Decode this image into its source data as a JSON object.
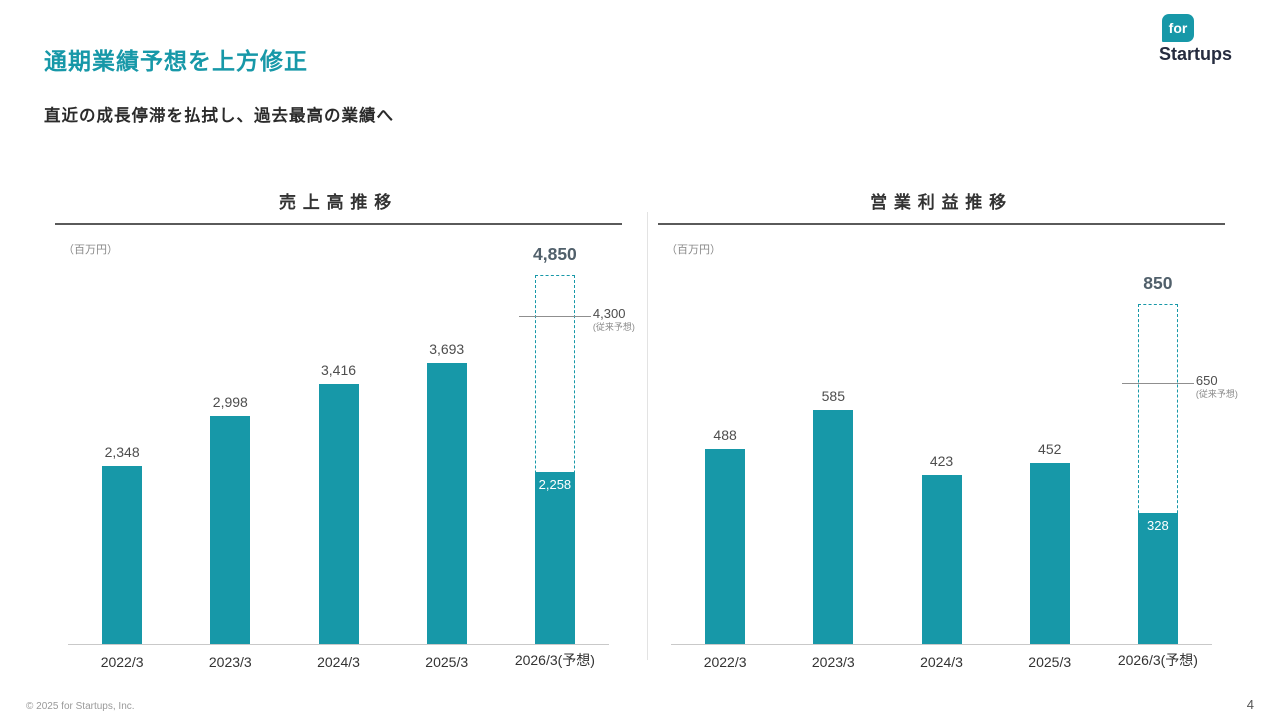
{
  "header": {
    "title": "通期業績予想を上方修正",
    "subtitle": "直近の成長停滞を払拭し、過去最高の業績へ"
  },
  "logo": {
    "badge": "for",
    "name": "Startups"
  },
  "footer": {
    "copyright": "© 2025 for Startups, Inc.",
    "page_number": "4"
  },
  "colors": {
    "accent_teal": "#1798A8",
    "forecast_label": "#51606B",
    "logo_navy": "#262C3F",
    "axis_gray": "#C9C9C9"
  },
  "chart_data": [
    {
      "type": "bar",
      "title": "売上高推移",
      "unit_label": "（百万円）",
      "ylim": [
        0,
        5000
      ],
      "legend": "none",
      "categories": [
        "2022/3",
        "2023/3",
        "2024/3",
        "2025/3",
        "2026/3(予想)"
      ],
      "bars": [
        {
          "category": "2022/3",
          "value": 2348,
          "label": "2,348"
        },
        {
          "category": "2023/3",
          "value": 2998,
          "label": "2,998"
        },
        {
          "category": "2024/3",
          "value": 3416,
          "label": "3,416"
        },
        {
          "category": "2025/3",
          "value": 3693,
          "label": "3,693"
        }
      ],
      "forecast_bar": {
        "category": "2026/3(予想)",
        "total": 4850,
        "total_label": "4,850",
        "achieved": 2258,
        "achieved_label": "2,258",
        "previous": 4300,
        "previous_label": "4,300",
        "previous_note": "(従来予想)"
      }
    },
    {
      "type": "bar",
      "title": "営業利益推移",
      "unit_label": "（百万円）",
      "ylim": [
        0,
        950
      ],
      "legend": "none",
      "categories": [
        "2022/3",
        "2023/3",
        "2024/3",
        "2025/3",
        "2026/3(予想)"
      ],
      "bars": [
        {
          "category": "2022/3",
          "value": 488,
          "label": "488"
        },
        {
          "category": "2023/3",
          "value": 585,
          "label": "585"
        },
        {
          "category": "2024/3",
          "value": 423,
          "label": "423"
        },
        {
          "category": "2025/3",
          "value": 452,
          "label": "452"
        }
      ],
      "forecast_bar": {
        "category": "2026/3(予想)",
        "total": 850,
        "total_label": "850",
        "achieved": 328,
        "achieved_label": "328",
        "previous": 650,
        "previous_label": "650",
        "previous_note": "(従来予想)"
      }
    }
  ]
}
